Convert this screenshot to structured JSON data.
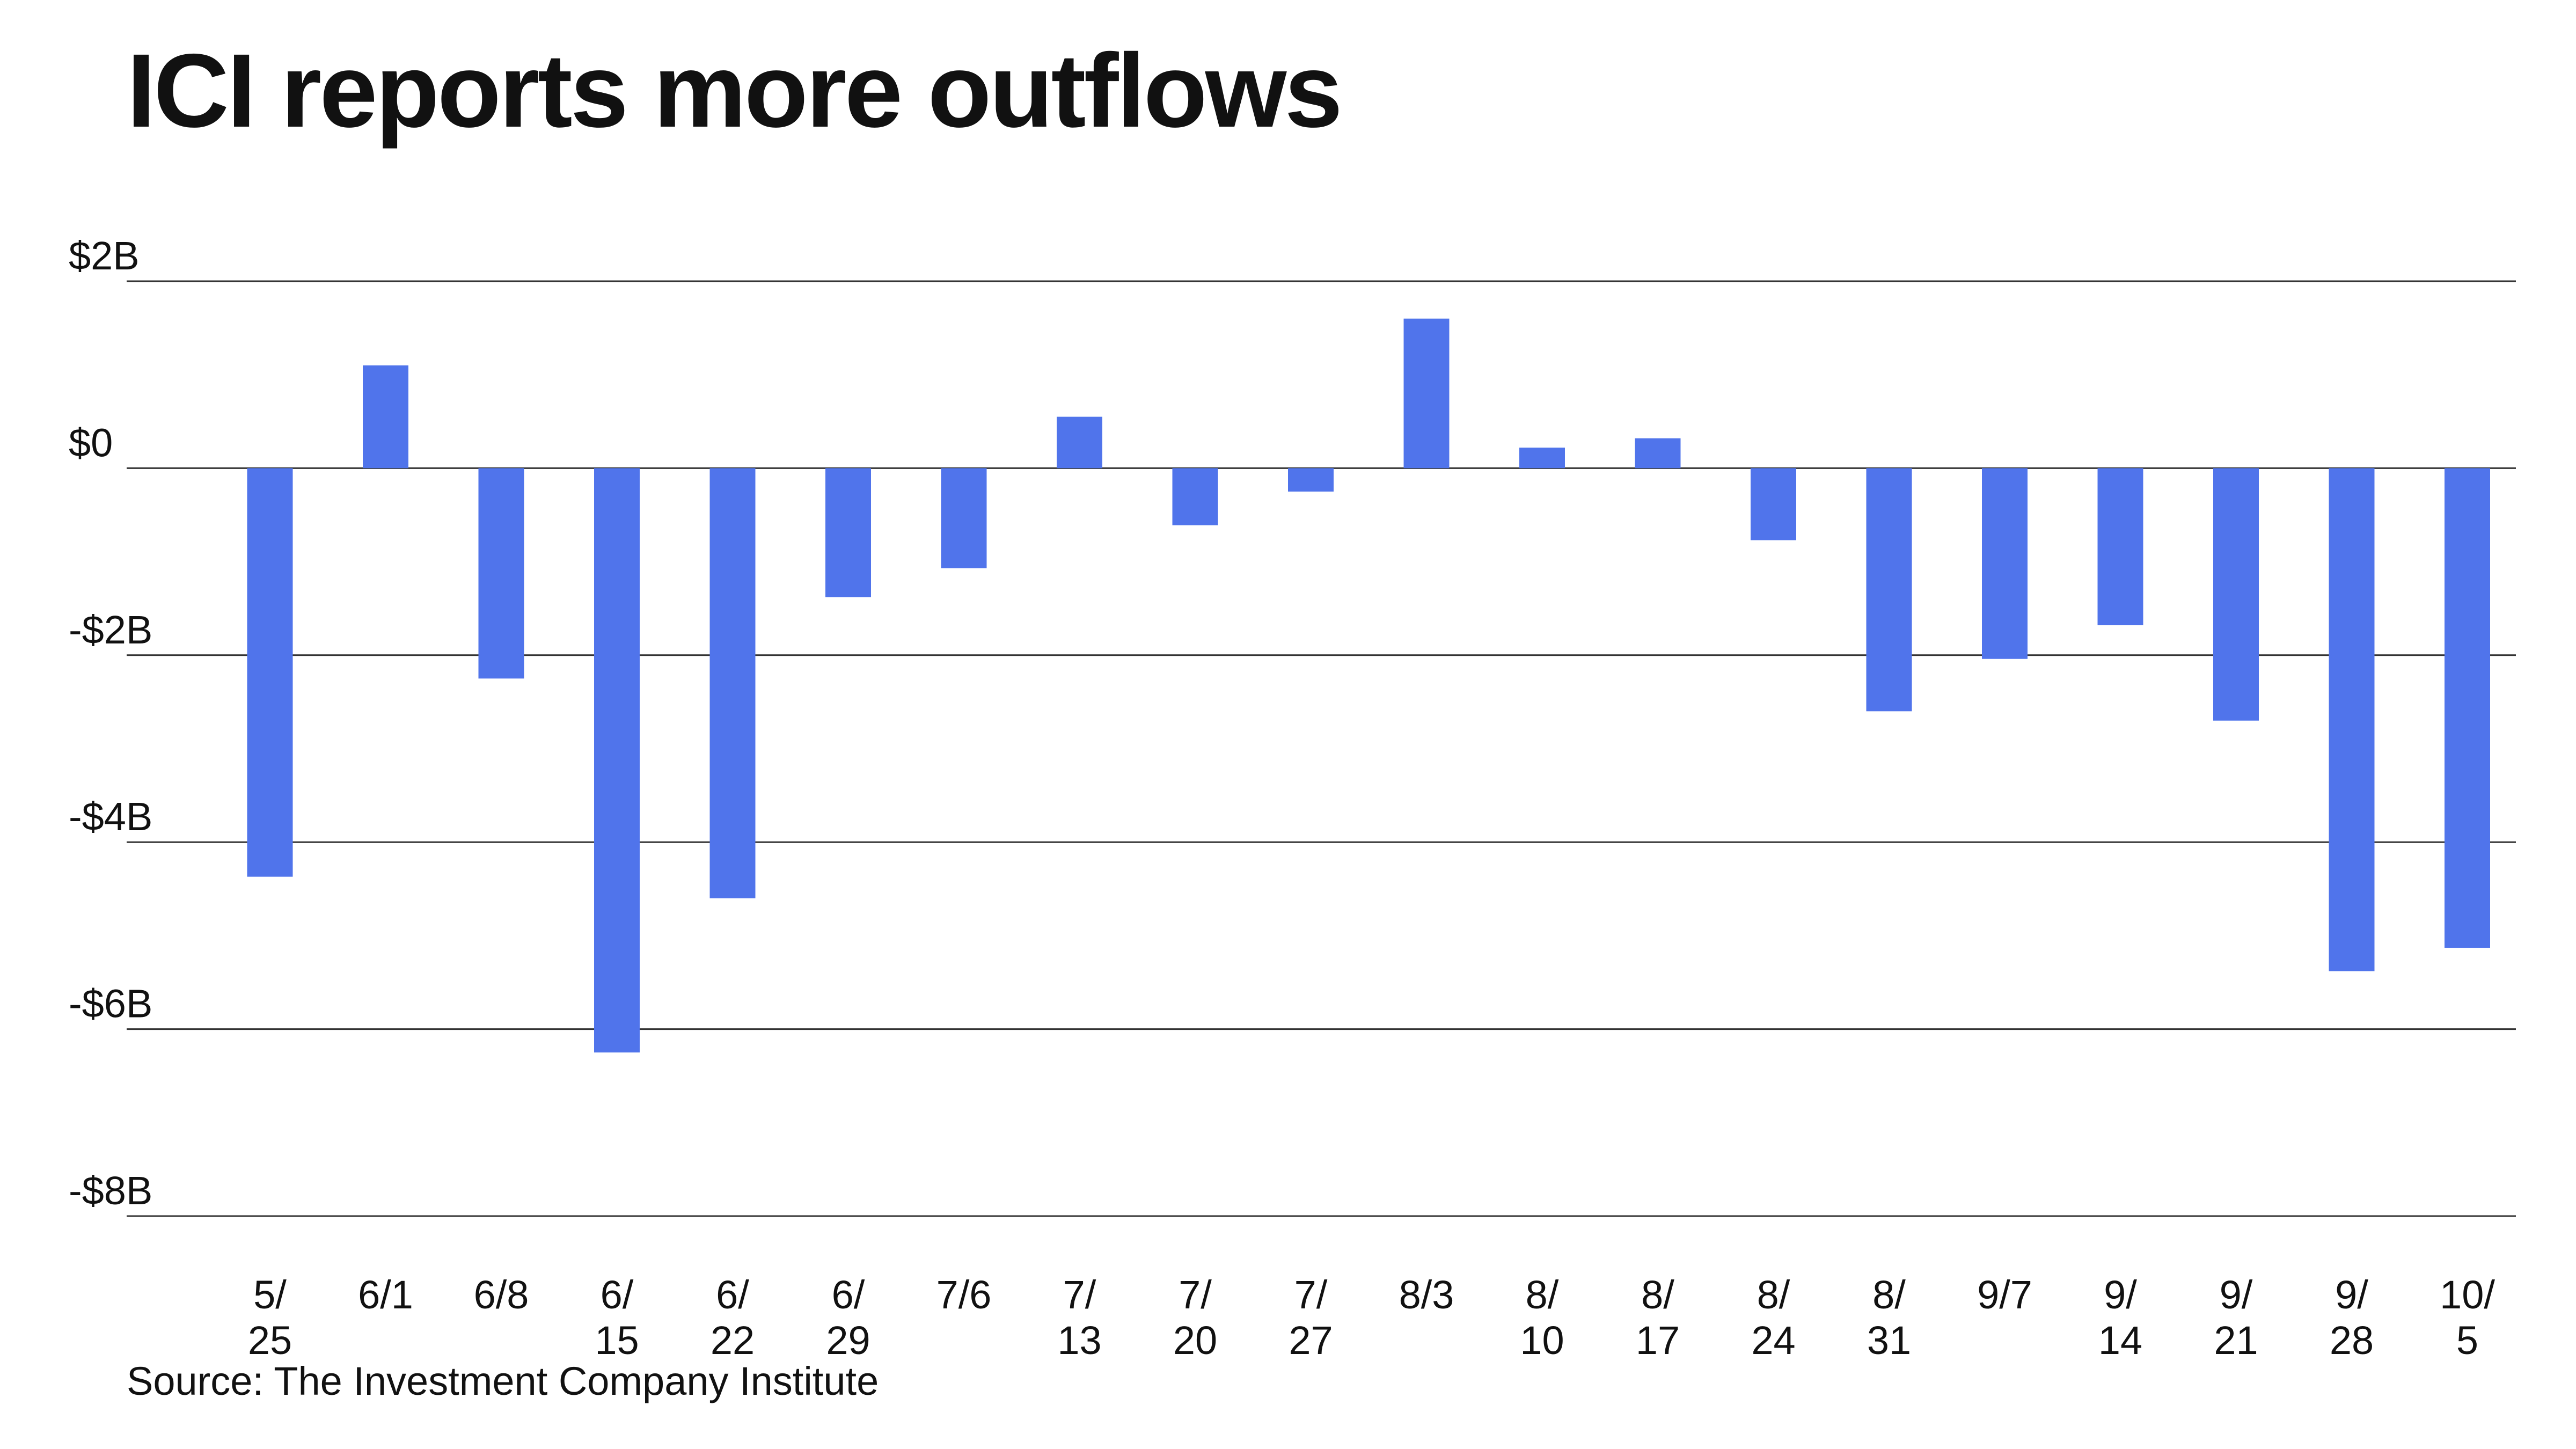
{
  "title": "ICI reports more outflows",
  "source": "Source: The Investment Company Institute",
  "colors": {
    "bar": "#5074EB",
    "grid": "#333333",
    "text": "#111111",
    "background": "#FFFFFF"
  },
  "chart_data": {
    "type": "bar",
    "title": "ICI reports more outflows",
    "xlabel": "",
    "ylabel": "",
    "unit": "billions of dollars",
    "categories": [
      "5/25",
      "6/1",
      "6/8",
      "6/15",
      "6/22",
      "6/29",
      "7/6",
      "7/13",
      "7/20",
      "7/27",
      "8/3",
      "8/10",
      "8/17",
      "8/24",
      "8/31",
      "9/7",
      "9/14",
      "9/21",
      "9/28",
      "10/5"
    ],
    "tick_labels": [
      [
        "5/",
        "25"
      ],
      [
        "6/1"
      ],
      [
        "6/8"
      ],
      [
        "6/",
        "15"
      ],
      [
        "6/",
        "22"
      ],
      [
        "6/",
        "29"
      ],
      [
        "7/6"
      ],
      [
        "7/",
        "13"
      ],
      [
        "7/",
        "20"
      ],
      [
        "7/",
        "27"
      ],
      [
        "8/3"
      ],
      [
        "8/",
        "10"
      ],
      [
        "8/",
        "17"
      ],
      [
        "8/",
        "24"
      ],
      [
        "8/",
        "31"
      ],
      [
        "9/7"
      ],
      [
        "9/",
        "14"
      ],
      [
        "9/",
        "21"
      ],
      [
        "9/",
        "28"
      ],
      [
        "10/",
        "5"
      ]
    ],
    "values": [
      -4.37,
      1.1,
      -2.25,
      -6.25,
      -4.6,
      -1.38,
      -1.07,
      0.55,
      -0.61,
      -0.25,
      1.6,
      0.22,
      0.32,
      -0.77,
      -2.6,
      -2.04,
      -1.68,
      -2.7,
      -5.38,
      -5.13
    ],
    "ylim": [
      -8,
      2
    ],
    "yticks": [
      2,
      0,
      -2,
      -4,
      -6,
      -8
    ],
    "ytick_labels": [
      "$2B",
      "$0",
      "-$2B",
      "-$4B",
      "-$6B",
      "-$8B"
    ],
    "grid": true,
    "legend": "none"
  }
}
